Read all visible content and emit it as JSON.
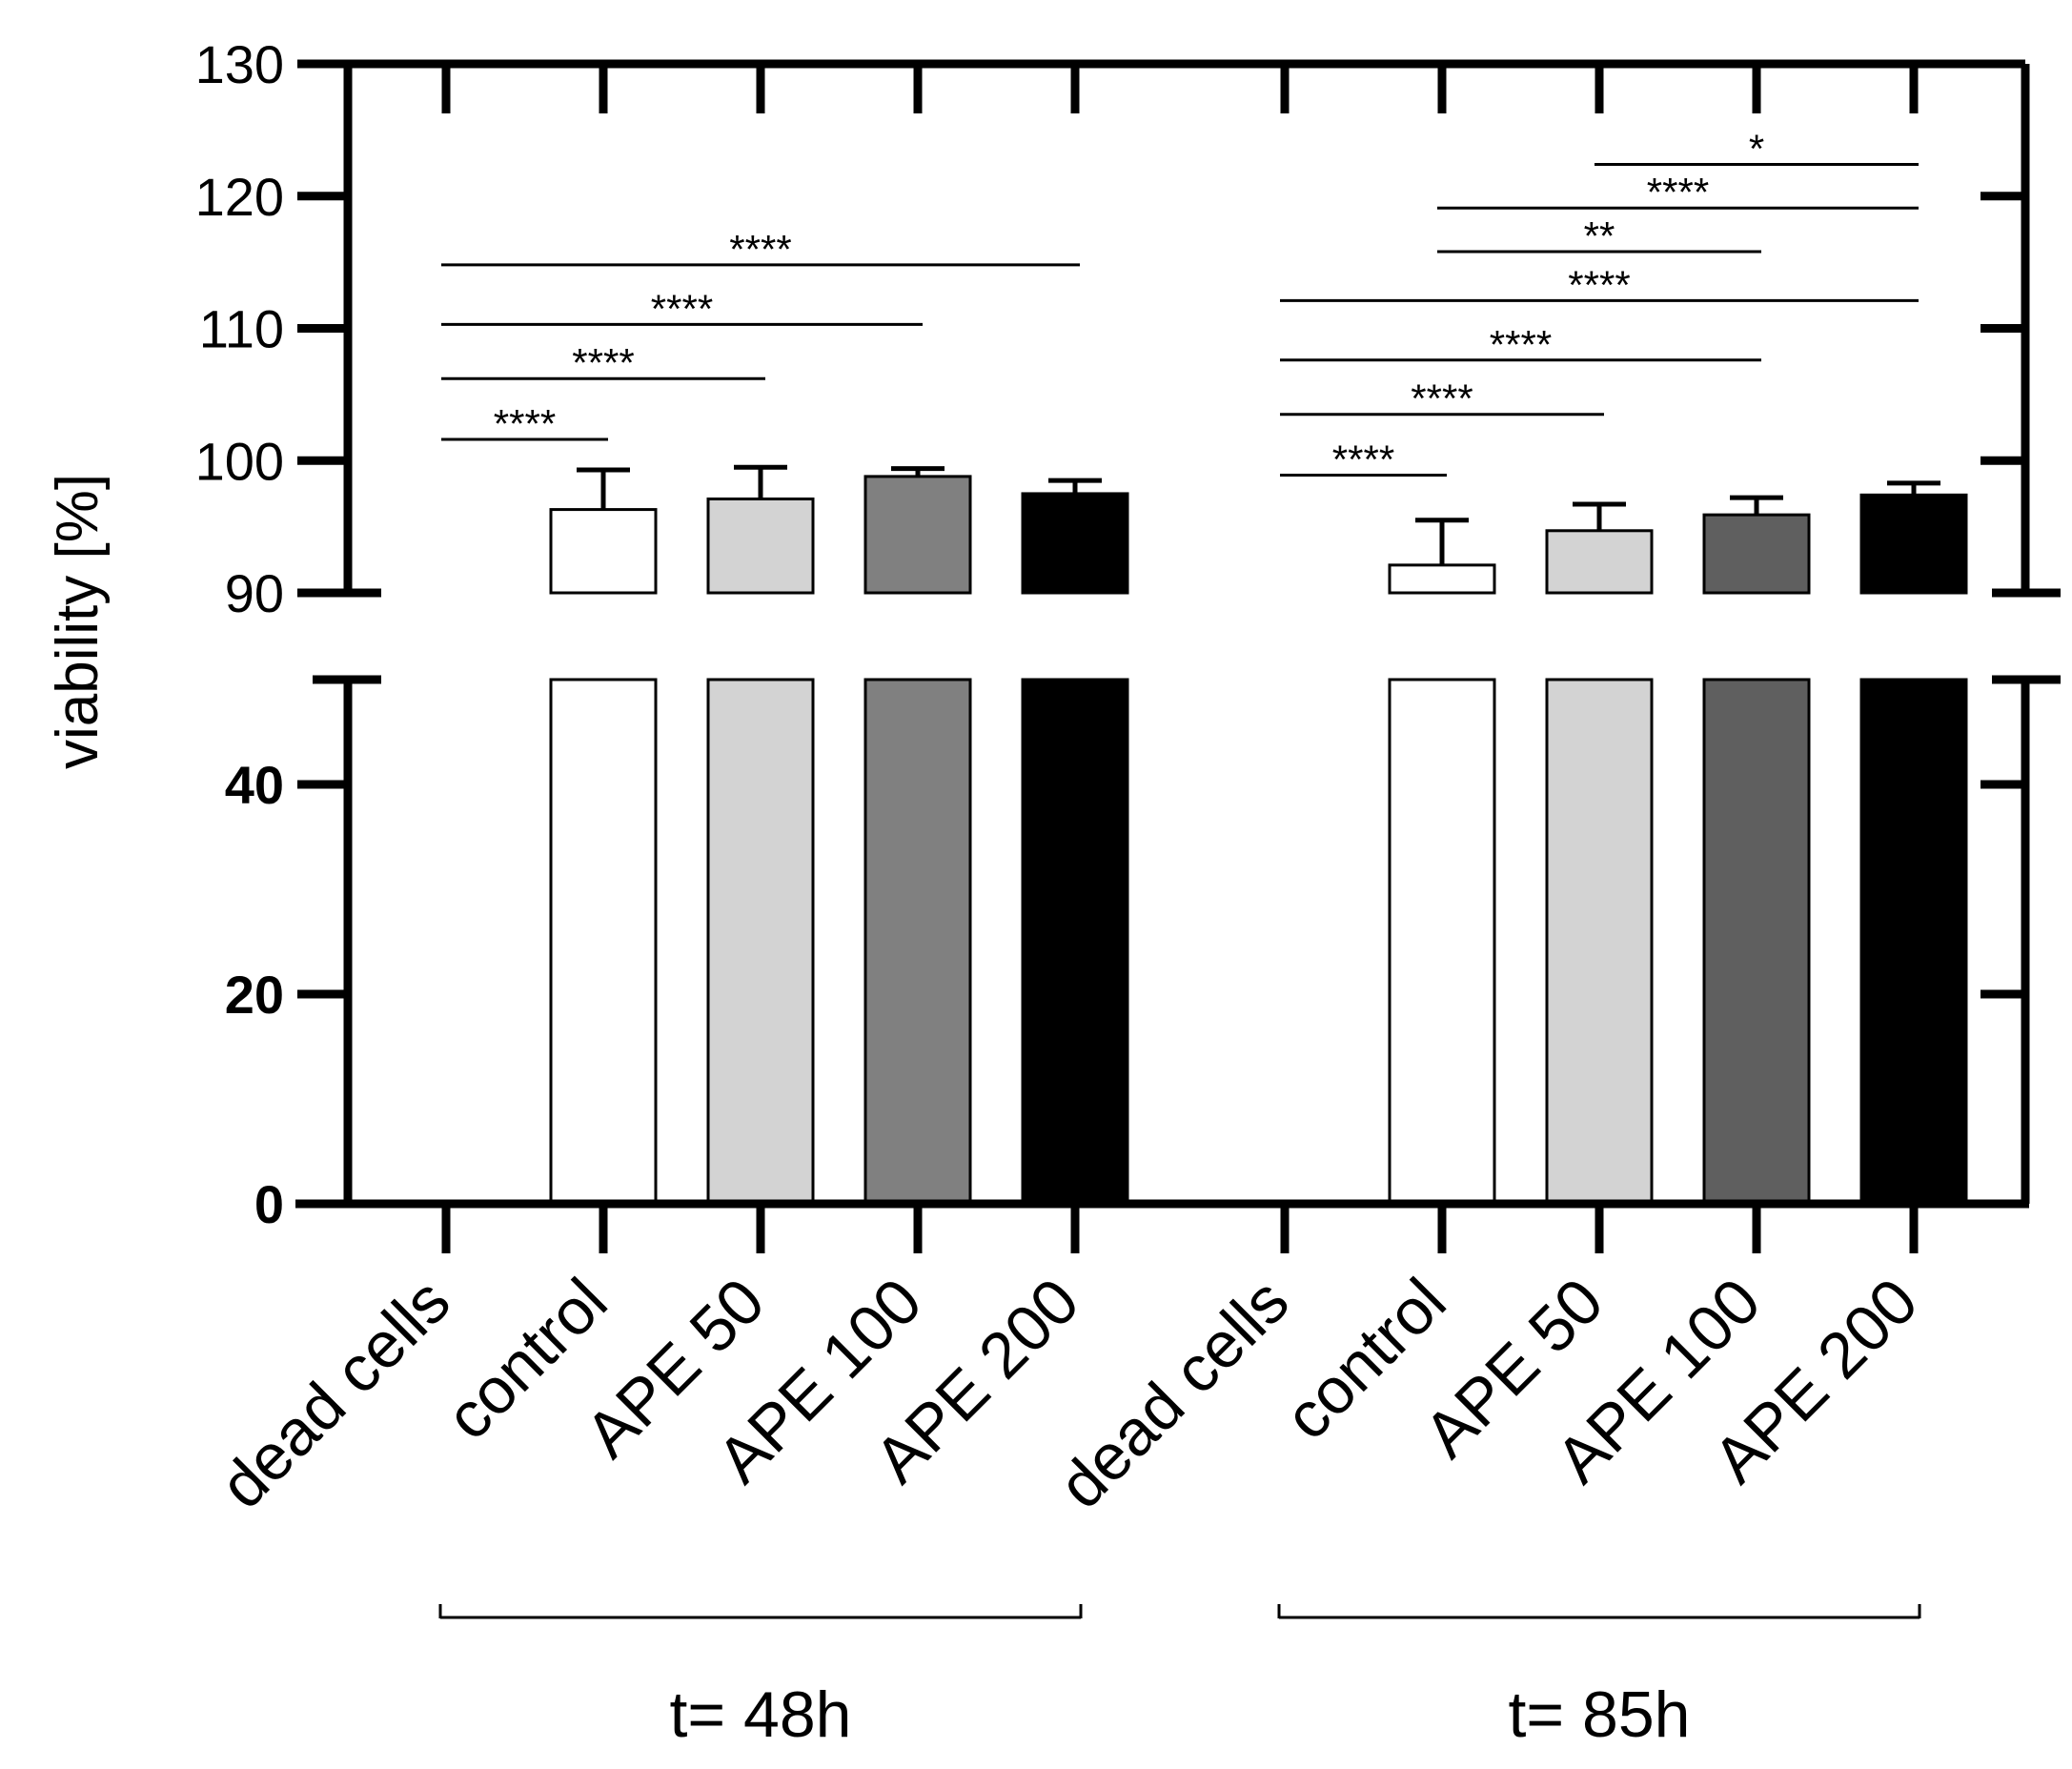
{
  "chart_data": {
    "type": "bar",
    "title": "",
    "ylabel": "viability [%]",
    "xlabel": "",
    "y_axis_break": {
      "upper_range": [
        90,
        130
      ],
      "lower_range": [
        0,
        50
      ]
    },
    "upper_ticks": [
      "130",
      "120",
      "110",
      "100",
      "90"
    ],
    "upper_tick_values": [
      130,
      120,
      110,
      100,
      90
    ],
    "lower_ticks": [
      "40",
      "20",
      "0"
    ],
    "lower_tick_values": [
      40,
      20,
      0
    ],
    "categories": [
      "dead cells",
      "control",
      "APE 50",
      "APE 100",
      "APE 200",
      "dead cells",
      "control",
      "APE 50",
      "APE 100",
      "APE 200"
    ],
    "values": [
      0,
      96.3,
      97.1,
      98.8,
      97.5,
      0,
      92.1,
      94.7,
      95.9,
      97.4
    ],
    "errors": [
      0,
      3.0,
      2.4,
      0.6,
      1.0,
      0,
      3.4,
      2.0,
      1.3,
      0.9
    ],
    "colors": [
      "#ffffff",
      "#ffffff",
      "#d3d3d3",
      "#808080",
      "#000000",
      "#ffffff",
      "#ffffff",
      "#d3d3d3",
      "#5f5f5f",
      "#000000"
    ],
    "groups": [
      {
        "label": "t= 48h",
        "start": 0,
        "end": 4
      },
      {
        "label": "t= 85h",
        "start": 5,
        "end": 9
      }
    ],
    "significance": [
      {
        "from": 0,
        "to": 1,
        "y": 101.6,
        "label": "****"
      },
      {
        "from": 0,
        "to": 2,
        "y": 106.2,
        "label": "****"
      },
      {
        "from": 0,
        "to": 3,
        "y": 110.3,
        "label": "****"
      },
      {
        "from": 0,
        "to": 4,
        "y": 114.8,
        "label": "****"
      },
      {
        "from": 5,
        "to": 6,
        "y": 98.9,
        "label": "****"
      },
      {
        "from": 5,
        "to": 7,
        "y": 103.5,
        "label": "****"
      },
      {
        "from": 5,
        "to": 8,
        "y": 107.6,
        "label": "****"
      },
      {
        "from": 5,
        "to": 9,
        "y": 112.1,
        "label": "****"
      },
      {
        "from": 6,
        "to": 8,
        "y": 115.8,
        "label": "**"
      },
      {
        "from": 6,
        "to": 9,
        "y": 119.1,
        "label": "****"
      },
      {
        "from": 7,
        "to": 9,
        "y": 122.4,
        "label": "*"
      }
    ]
  }
}
